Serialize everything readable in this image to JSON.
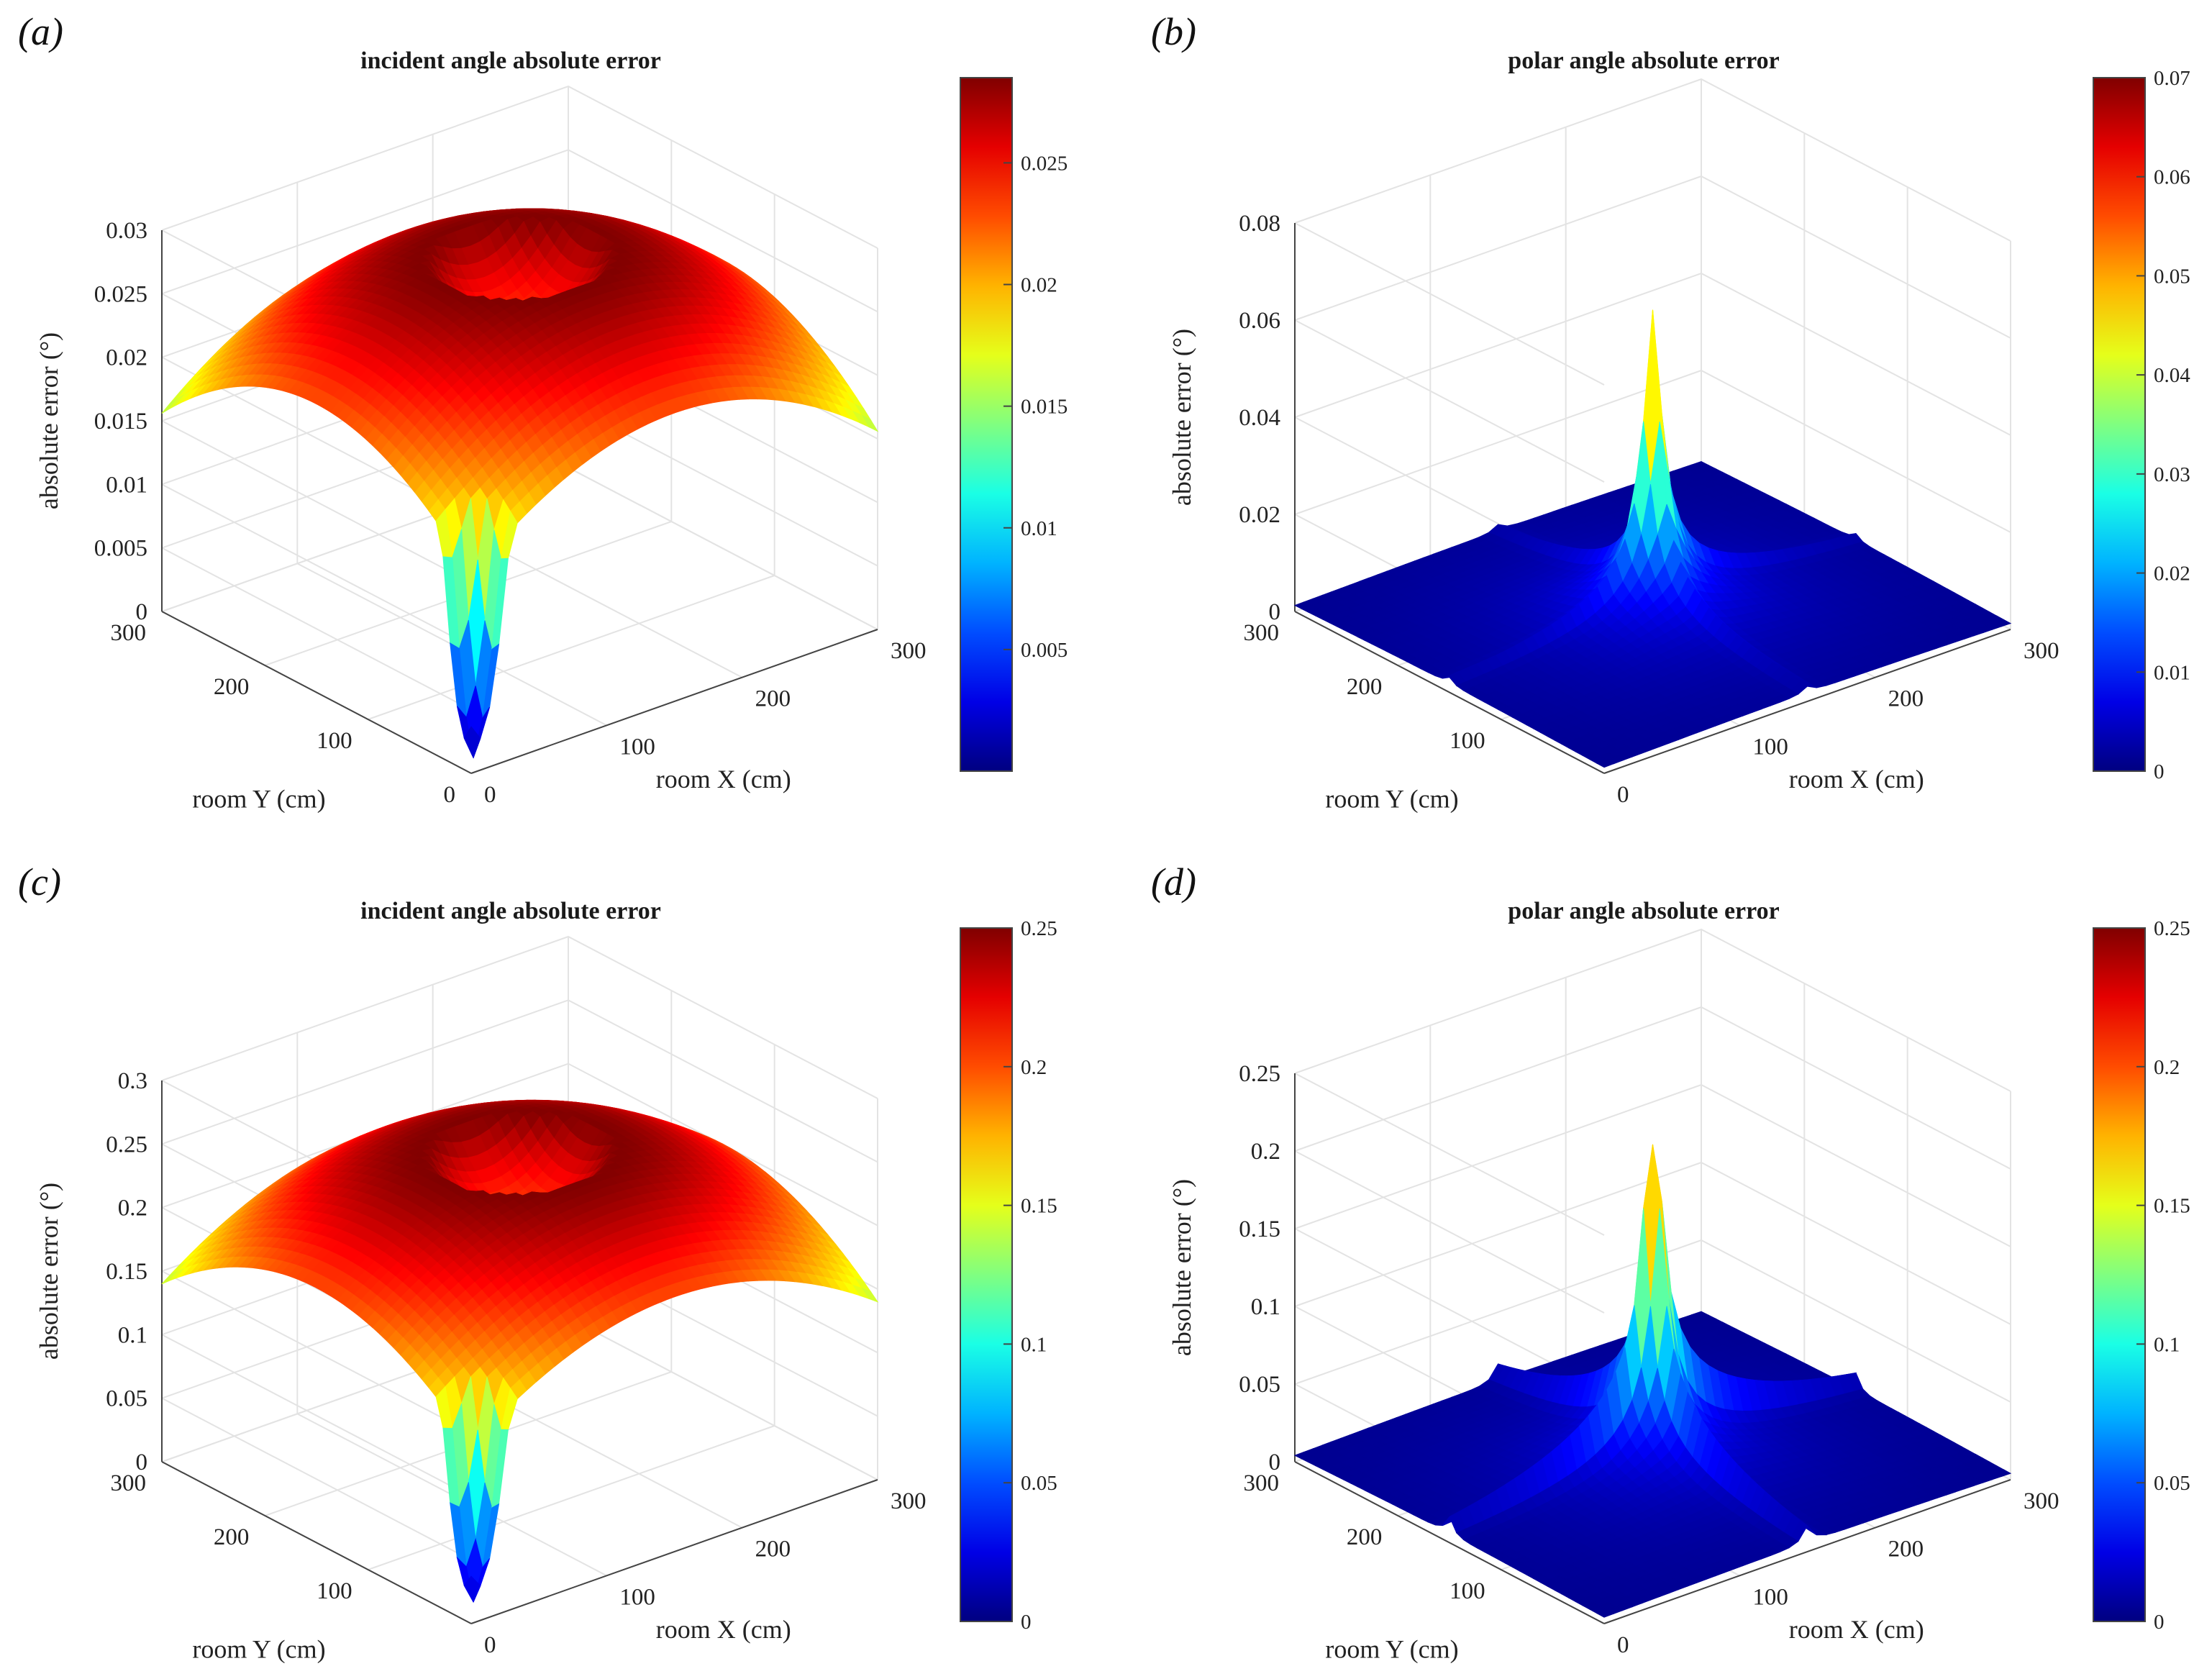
{
  "colors": {
    "axis": "#444444",
    "grid": "#e3e3e3",
    "floor": "#00008f"
  },
  "colormap": "jet",
  "chart_data": [
    {
      "id": "a",
      "label": "(a)",
      "type": "surface3d",
      "title": "incident angle absolute error",
      "xlabel": "room X (cm)",
      "ylabel": "room Y (cm)",
      "zlabel": "absolute error (°)",
      "xticks": [
        "0",
        "100",
        "200",
        "300"
      ],
      "yticks": [
        "0",
        "100",
        "200",
        "300"
      ],
      "zticks": [
        "0",
        "0.005",
        "0.01",
        "0.015",
        "0.02",
        "0.025",
        "0.03"
      ],
      "zlim": [
        0,
        0.03
      ],
      "colorbar": {
        "ticks": [
          "0.005",
          "0.01",
          "0.015",
          "0.02",
          "0.025"
        ],
        "tick_values": [
          0.005,
          0.01,
          0.015,
          0.02,
          0.025
        ],
        "range": [
          0,
          0.0285
        ]
      },
      "surface": {
        "kind": "ring",
        "peak": 0.0285,
        "center": 0.0236,
        "corner": 0.0156,
        "dip_min": 0.0005
      }
    },
    {
      "id": "b",
      "label": "(b)",
      "type": "surface3d",
      "title": "polar angle absolute error",
      "xlabel": "room X (cm)",
      "ylabel": "room Y (cm)",
      "zlabel": "absolute error (°)",
      "xticks": [
        "0",
        "100",
        "200",
        "300"
      ],
      "yticks": [
        "100",
        "200",
        "300"
      ],
      "zticks": [
        "0",
        "0.02",
        "0.04",
        "0.06",
        "0.08"
      ],
      "zlim": [
        0,
        0.08
      ],
      "colorbar": {
        "ticks": [
          "0",
          "0.01",
          "0.02",
          "0.03",
          "0.04",
          "0.05",
          "0.06",
          "0.07"
        ],
        "tick_values": [
          0,
          0.01,
          0.02,
          0.03,
          0.04,
          0.05,
          0.06,
          0.07
        ],
        "range": [
          0,
          0.07
        ]
      },
      "surface": {
        "kind": "spike",
        "peak": 0.064,
        "ridge": 0.006
      }
    },
    {
      "id": "c",
      "label": "(c)",
      "type": "surface3d",
      "title": "incident angle absolute error",
      "xlabel": "room X (cm)",
      "ylabel": "room Y (cm)",
      "zlabel": "absolute error (°)",
      "xticks": [
        "0",
        "100",
        "200",
        "300"
      ],
      "yticks": [
        "100",
        "200",
        "300"
      ],
      "zticks": [
        "0",
        "0.05",
        "0.1",
        "0.15",
        "0.2",
        "0.25",
        "0.3"
      ],
      "zlim": [
        0,
        0.3
      ],
      "colorbar": {
        "ticks": [
          "0",
          "0.05",
          "0.1",
          "0.15",
          "0.2",
          "0.25"
        ],
        "tick_values": [
          0,
          0.05,
          0.1,
          0.15,
          0.2,
          0.25
        ],
        "range": [
          0,
          0.25
        ]
      },
      "surface": {
        "kind": "ring",
        "peak": 0.25,
        "center": 0.205,
        "corner": 0.14,
        "dip_min": 0.01
      }
    },
    {
      "id": "d",
      "label": "(d)",
      "type": "surface3d",
      "title": "polar angle absolute error",
      "xlabel": "room X (cm)",
      "ylabel": "room Y (cm)",
      "zlabel": "absolute error (°)",
      "xticks": [
        "0",
        "100",
        "200",
        "300"
      ],
      "yticks": [
        "100",
        "200",
        "300"
      ],
      "zticks": [
        "0",
        "0.05",
        "0.1",
        "0.15",
        "0.2",
        "0.25"
      ],
      "zlim": [
        0,
        0.25
      ],
      "colorbar": {
        "ticks": [
          "0",
          "0.05",
          "0.1",
          "0.15",
          "0.2",
          "0.25"
        ],
        "tick_values": [
          0,
          0.05,
          0.1,
          0.15,
          0.2,
          0.25
        ],
        "range": [
          0,
          0.25
        ]
      },
      "surface": {
        "kind": "spike",
        "peak": 0.21,
        "ridge": 0.05
      }
    }
  ]
}
